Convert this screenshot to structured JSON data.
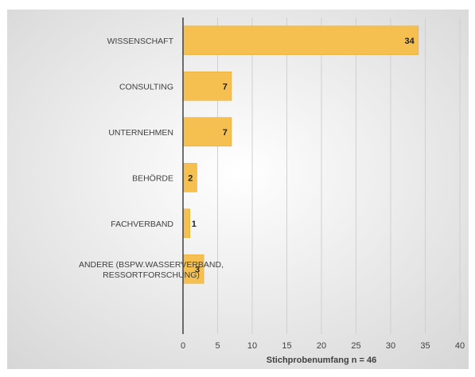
{
  "chart_data": {
    "type": "bar",
    "orientation": "horizontal",
    "categories": [
      "WISSENSCHAFT",
      "CONSULTING",
      "UNTERNEHMEN",
      "BEHÖRDE",
      "FACHVERBAND",
      "ANDERE (BSPW.WASSERVERBAND, RESSORTFORSCHUNG)"
    ],
    "category_lines": [
      [
        "WISSENSCHAFT"
      ],
      [
        "CONSULTING"
      ],
      [
        "UNTERNEHMEN"
      ],
      [
        "BEHÖRDE"
      ],
      [
        "FACHVERBAND"
      ],
      [
        "ANDERE (BSPW.WASSERVERBAND,",
        "RESSORTFORSCHUNG)"
      ]
    ],
    "values": [
      34,
      7,
      7,
      2,
      1,
      3
    ],
    "data_labels": [
      "34",
      "7",
      "7",
      "2",
      "1",
      "3"
    ],
    "xlabel": "Stichprobenumfang n = 46",
    "xlim": [
      0,
      40
    ],
    "xticks": [
      0,
      5,
      10,
      15,
      20,
      25,
      30,
      35,
      40
    ],
    "xtick_labels": [
      "0",
      "5",
      "10",
      "15",
      "20",
      "25",
      "30",
      "35",
      "40"
    ],
    "grid": true,
    "legend": "none",
    "colors": {
      "bar": "#F5C04F",
      "bar_edge": "#E3AA33",
      "background_center": "#FFFFFF",
      "background_edge": "#D6D6D6",
      "grid": "#D0D0D0",
      "axis": "#404040",
      "text": "#404040"
    }
  }
}
